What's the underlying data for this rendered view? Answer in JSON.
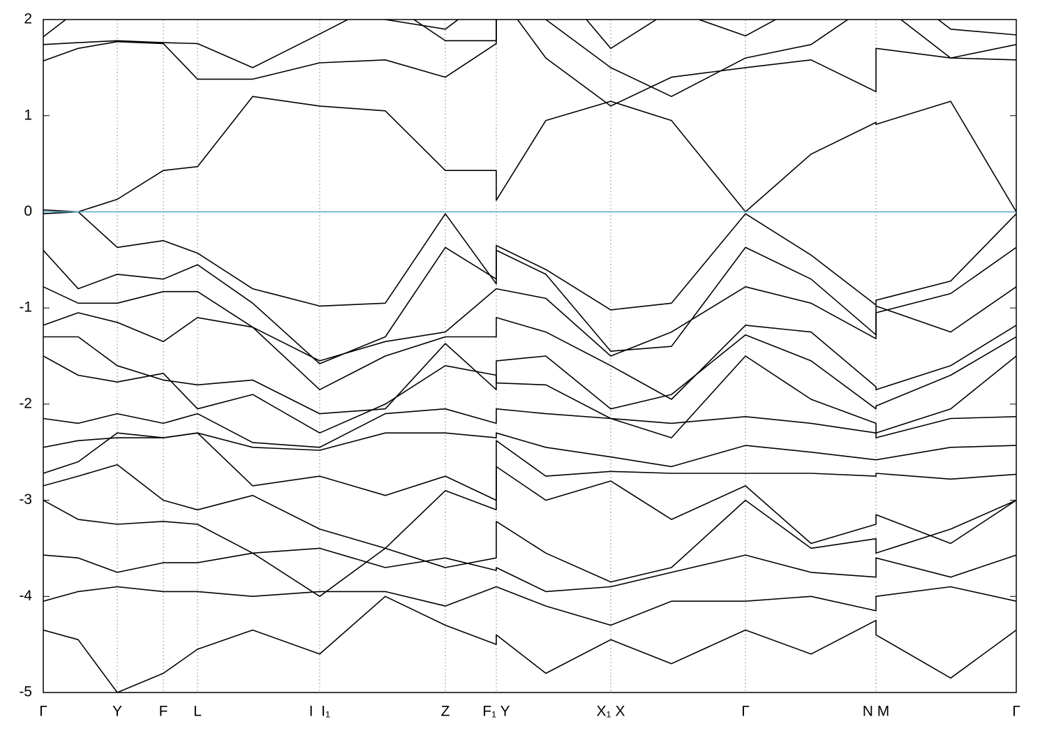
{
  "chart_data": {
    "type": "line",
    "x": [
      0,
      50,
      106,
      172,
      221,
      300,
      396,
      490,
      576,
      649,
      649,
      720,
      813,
      900,
      1006,
      1100,
      1193,
      1193,
      1300,
      1394
    ],
    "color": "#000000",
    "series": [
      {
        "values": [
          0.02,
          0.0,
          0.13,
          0.43,
          0.47,
          1.2,
          1.1,
          1.05,
          0.43,
          0.43,
          0.12,
          0.95,
          1.15,
          0.95,
          0.0,
          0.6,
          0.93,
          0.91,
          1.15,
          0.0
        ]
      },
      {
        "values": [
          1.57,
          1.7,
          1.77,
          1.75,
          1.38,
          1.38,
          1.55,
          1.58,
          1.4,
          1.75,
          2.3,
          1.6,
          1.1,
          1.4,
          1.5,
          1.58,
          1.25,
          1.7,
          1.6,
          1.58
        ]
      },
      {
        "values": [
          1.74,
          1.76,
          1.78,
          1.76,
          1.75,
          1.5,
          1.85,
          2.2,
          1.78,
          1.78,
          2.4,
          2.0,
          1.5,
          1.2,
          1.6,
          1.74,
          2.2,
          2.2,
          1.6,
          1.74
        ]
      },
      {
        "values": [
          1.82,
          2.1,
          2.4,
          2.3,
          2.2,
          2.0,
          2.4,
          2.0,
          1.9,
          2.3,
          2.5,
          2.5,
          1.7,
          2.1,
          1.83,
          2.2,
          2.5,
          2.5,
          1.9,
          1.84
        ]
      },
      {
        "values": [
          -0.02,
          0.0,
          -0.37,
          -0.3,
          -0.43,
          -0.8,
          -0.98,
          -0.95,
          -0.02,
          -0.75,
          -0.35,
          -0.6,
          -1.02,
          -0.95,
          -0.02,
          -0.45,
          -0.97,
          -0.92,
          -0.72,
          -0.02
        ]
      },
      {
        "values": [
          -0.4,
          -0.8,
          -0.65,
          -0.7,
          -0.55,
          -0.95,
          -1.58,
          -1.3,
          -0.37,
          -0.7,
          -0.4,
          -0.65,
          -1.45,
          -1.4,
          -0.37,
          -0.7,
          -1.28,
          -1.05,
          -0.85,
          -0.37
        ]
      },
      {
        "values": [
          -0.78,
          -0.95,
          -0.95,
          -0.83,
          -0.83,
          -1.2,
          -1.55,
          -1.35,
          -1.25,
          -0.8,
          -0.8,
          -0.9,
          -1.5,
          -1.25,
          -0.78,
          -0.95,
          -1.32,
          -0.98,
          -1.25,
          -0.78
        ]
      },
      {
        "values": [
          -1.18,
          -1.05,
          -1.15,
          -1.35,
          -1.1,
          -1.2,
          -1.85,
          -1.5,
          -1.3,
          -1.3,
          -1.1,
          -1.25,
          -1.6,
          -1.95,
          -1.18,
          -1.25,
          -1.82,
          -1.85,
          -1.6,
          -1.18
        ]
      },
      {
        "values": [
          -1.3,
          -1.3,
          -1.6,
          -1.75,
          -1.8,
          -1.75,
          -2.1,
          -2.05,
          -1.37,
          -1.85,
          -1.55,
          -1.5,
          -2.05,
          -1.9,
          -1.28,
          -1.55,
          -2.05,
          -2.02,
          -1.7,
          -1.3
        ]
      },
      {
        "values": [
          -1.5,
          -1.7,
          -1.77,
          -1.68,
          -2.05,
          -1.9,
          -2.3,
          -2.0,
          -1.6,
          -1.7,
          -1.78,
          -1.8,
          -2.15,
          -2.35,
          -1.5,
          -1.95,
          -2.2,
          -2.3,
          -2.05,
          -1.5
        ]
      },
      {
        "values": [
          -2.15,
          -2.2,
          -2.1,
          -2.2,
          -2.1,
          -2.4,
          -2.45,
          -2.1,
          -2.05,
          -2.2,
          -2.05,
          -2.1,
          -2.15,
          -2.2,
          -2.13,
          -2.2,
          -2.3,
          -2.35,
          -2.15,
          -2.13
        ]
      },
      {
        "values": [
          -2.45,
          -2.38,
          -2.35,
          -2.35,
          -2.3,
          -2.45,
          -2.48,
          -2.3,
          -2.3,
          -2.35,
          -2.3,
          -2.45,
          -2.55,
          -2.65,
          -2.43,
          -2.5,
          -2.58,
          -2.58,
          -2.45,
          -2.43
        ]
      },
      {
        "values": [
          -2.72,
          -2.6,
          -2.3,
          -2.35,
          -2.3,
          -2.85,
          -2.75,
          -2.95,
          -2.75,
          -3.0,
          -2.38,
          -2.75,
          -2.7,
          -2.72,
          -2.72,
          -2.72,
          -2.75,
          -2.72,
          -2.78,
          -2.73
        ]
      },
      {
        "values": [
          -2.85,
          -2.75,
          -2.63,
          -3.0,
          -3.1,
          -2.95,
          -3.3,
          -3.5,
          -2.9,
          -3.1,
          -2.65,
          -3.0,
          -2.8,
          -3.2,
          -2.85,
          -3.45,
          -3.25,
          -3.15,
          -3.45,
          -3.0
        ]
      },
      {
        "values": [
          -3.0,
          -3.2,
          -3.25,
          -3.22,
          -3.25,
          -3.55,
          -4.0,
          -3.5,
          -3.7,
          -3.6,
          -3.22,
          -3.55,
          -3.85,
          -3.7,
          -3.0,
          -3.5,
          -3.4,
          -3.55,
          -3.3,
          -3.0
        ]
      },
      {
        "values": [
          -3.57,
          -3.6,
          -3.75,
          -3.65,
          -3.65,
          -3.55,
          -3.5,
          -3.7,
          -3.6,
          -3.73,
          -3.7,
          -3.95,
          -3.9,
          -3.75,
          -3.57,
          -3.75,
          -3.8,
          -3.6,
          -3.8,
          -3.57
        ]
      },
      {
        "values": [
          -4.05,
          -3.95,
          -3.9,
          -3.95,
          -3.95,
          -4.0,
          -3.95,
          -3.95,
          -4.1,
          -3.9,
          -3.9,
          -4.1,
          -4.3,
          -4.05,
          -4.05,
          -4.0,
          -4.15,
          -4.0,
          -3.9,
          -4.05
        ]
      },
      {
        "values": [
          -4.35,
          -4.45,
          -5.0,
          -4.8,
          -4.55,
          -4.35,
          -4.6,
          -4.0,
          -4.3,
          -4.5,
          -4.4,
          -4.8,
          -4.45,
          -4.7,
          -4.35,
          -4.6,
          -4.25,
          -4.4,
          -4.85,
          -4.35
        ]
      }
    ],
    "xlim": [
      0,
      1394
    ],
    "xticks": [
      {
        "value": 0,
        "label": "Γ"
      },
      {
        "value": 106,
        "label": "Y"
      },
      {
        "value": 172,
        "label": "F"
      },
      {
        "value": 221,
        "label": "L"
      },
      {
        "value": 396,
        "label": "I  I₁"
      },
      {
        "value": 576,
        "label": "Z"
      },
      {
        "value": 649,
        "label": "F₁ Y"
      },
      {
        "value": 813,
        "label": "X₁ X"
      },
      {
        "value": 1006,
        "label": "Γ"
      },
      {
        "value": 1193,
        "label": "N M"
      },
      {
        "value": 1394,
        "label": "Γ"
      }
    ],
    "ylim": [
      -5,
      2
    ],
    "yticks": [
      -5,
      -4,
      -3,
      -2,
      -1,
      0,
      1,
      2
    ],
    "hline": {
      "value": 0,
      "color": "#5aaec4"
    },
    "grid": "x"
  }
}
